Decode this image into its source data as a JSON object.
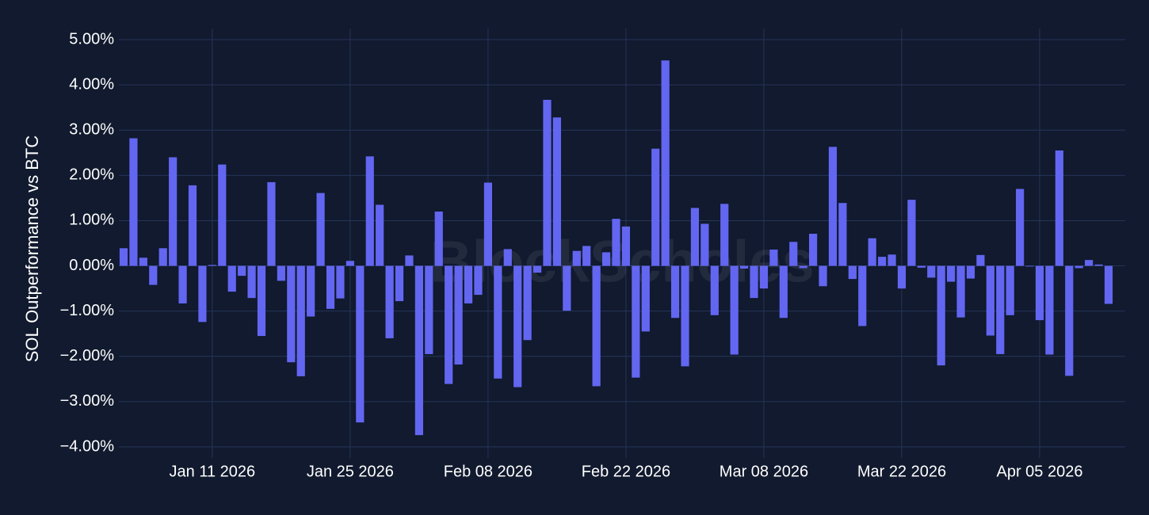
{
  "watermark": "BlockScholes",
  "colors": {
    "background": "#111a2e",
    "grid": "#26345a",
    "bar": "#6366f1",
    "text": "#ffffff"
  },
  "chart_data": {
    "type": "bar",
    "ylabel": "SOL Outperformance vs BTC",
    "ylim": [
      -0.04,
      0.05
    ],
    "y_ticks": [
      0.05,
      0.04,
      0.03,
      0.02,
      0.01,
      0.0,
      -0.01,
      -0.02,
      -0.03,
      -0.04
    ],
    "y_tick_labels": [
      "5.00%",
      "4.00%",
      "3.00%",
      "2.00%",
      "1.00%",
      "0.00%",
      "−1.00%",
      "−2.00%",
      "−3.00%",
      "−4.00%"
    ],
    "x_ticks": [
      "2026-01-11",
      "2026-01-25",
      "2026-02-08",
      "2026-02-22",
      "2026-03-08",
      "2026-03-22",
      "2026-04-05"
    ],
    "x_tick_labels": [
      "Jan 11 2026",
      "Jan 25 2026",
      "Feb 08 2026",
      "Feb 22 2026",
      "Mar 08 2026",
      "Mar 22 2026",
      "Apr 05 2026"
    ],
    "x_start": "2026-01-02",
    "grid": true,
    "values": [
      0.0039,
      0.0282,
      0.0018,
      -0.0042,
      0.0039,
      0.024,
      -0.0083,
      0.0178,
      -0.0124,
      0.0002,
      0.0224,
      -0.0057,
      -0.0022,
      -0.0071,
      -0.0155,
      0.0185,
      -0.0033,
      -0.0213,
      -0.0244,
      -0.0112,
      0.0161,
      -0.0095,
      -0.0072,
      0.0011,
      -0.0346,
      0.0242,
      0.0135,
      -0.016,
      -0.0078,
      0.0023,
      -0.0374,
      -0.0195,
      0.012,
      -0.0261,
      -0.0218,
      -0.0083,
      -0.0064,
      0.0184,
      -0.0249,
      0.0037,
      -0.0268,
      -0.0164,
      -0.0015,
      0.0367,
      0.0328,
      -0.0099,
      0.0033,
      0.0044,
      -0.0266,
      0.003,
      0.0104,
      0.0087,
      -0.0247,
      -0.0145,
      0.0259,
      0.0454,
      -0.0115,
      -0.0222,
      0.0128,
      0.0093,
      -0.0109,
      0.0137,
      -0.0196,
      -0.0006,
      -0.0071,
      -0.005,
      0.0036,
      -0.0115,
      0.0053,
      -0.0005,
      0.0071,
      -0.0045,
      0.0263,
      0.0139,
      -0.0029,
      -0.0133,
      0.0061,
      0.002,
      0.0025,
      -0.005,
      0.0146,
      -0.0004,
      -0.0026,
      -0.022,
      -0.0035,
      -0.0114,
      -0.0028,
      0.0024,
      -0.0154,
      -0.0195,
      -0.0109,
      0.017,
      0.0,
      -0.012,
      -0.0196,
      0.0255,
      -0.0243,
      -0.0005,
      0.0013,
      0.0003,
      -0.0084
    ]
  }
}
